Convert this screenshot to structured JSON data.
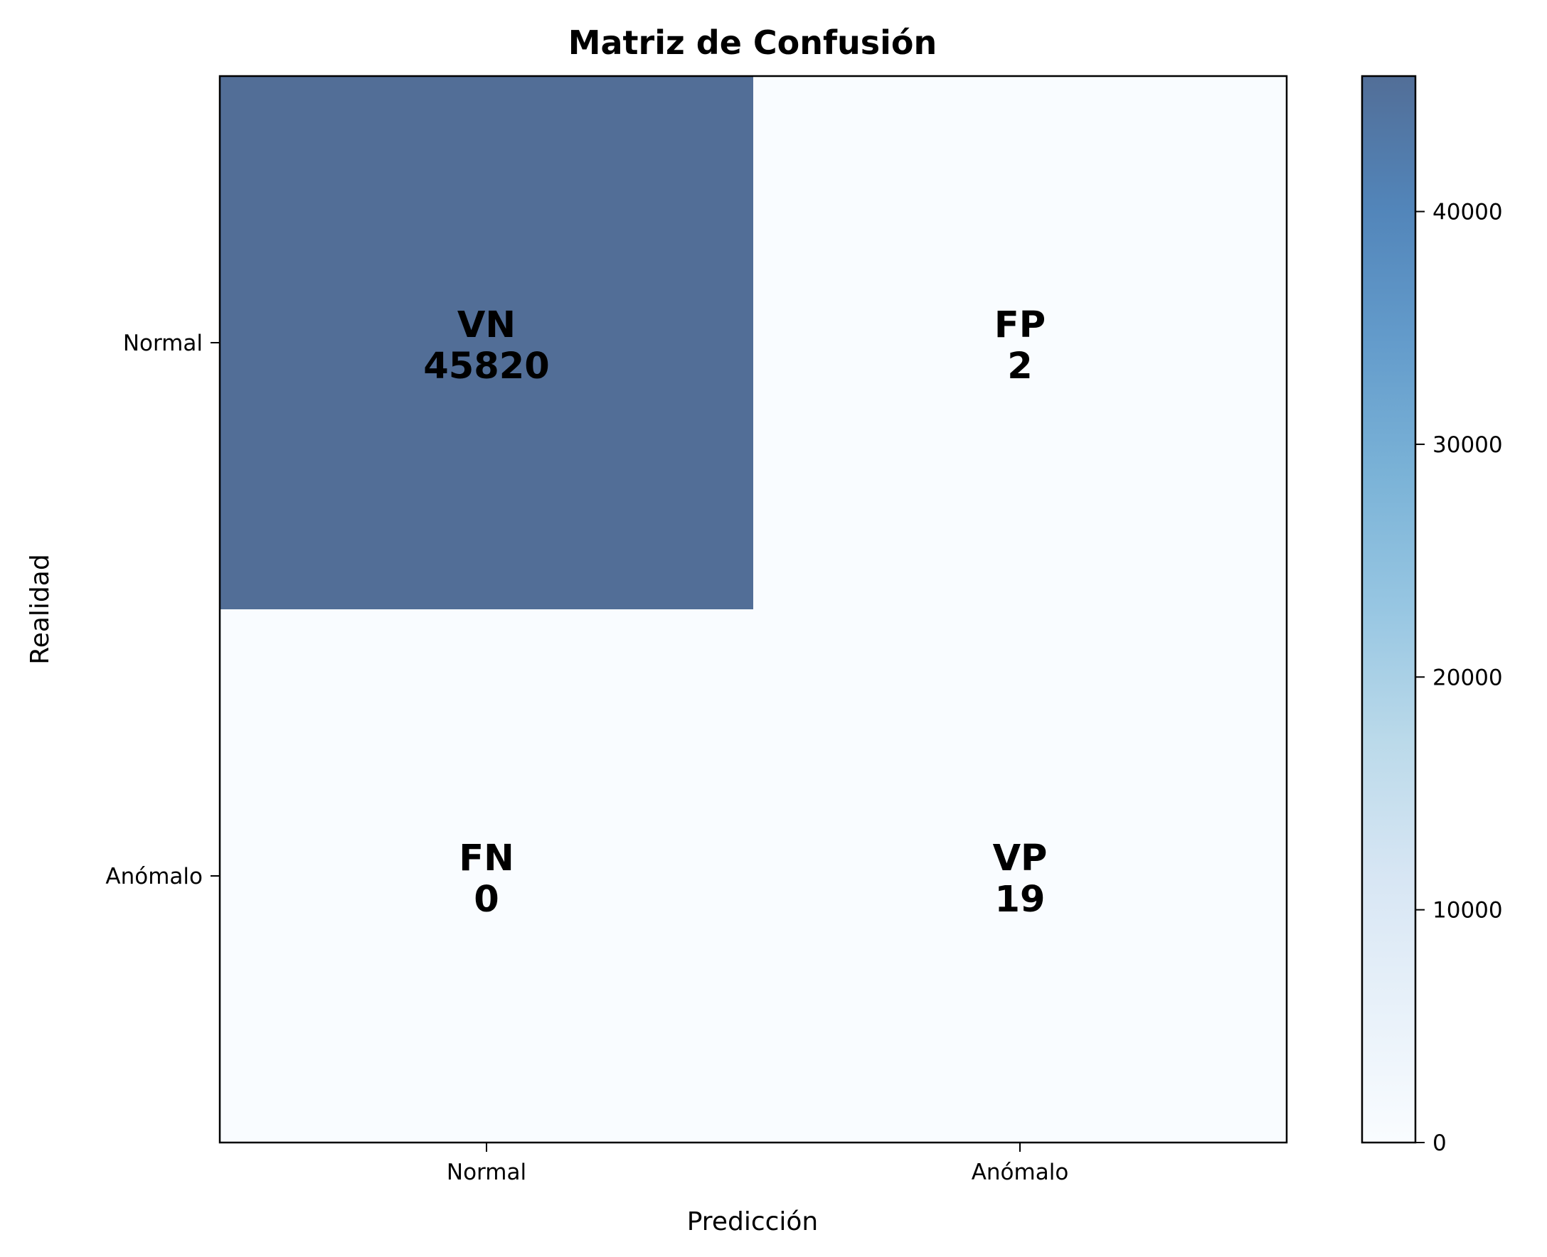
{
  "chart_data": {
    "type": "heatmap",
    "title": "Matriz de Confusión",
    "xlabel": "Predicción",
    "ylabel": "Realidad",
    "x_categories": [
      "Normal",
      "Anómalo"
    ],
    "y_categories": [
      "Normal",
      "Anómalo"
    ],
    "cells": [
      {
        "row": 0,
        "col": 0,
        "label": "VN",
        "value": 45820
      },
      {
        "row": 0,
        "col": 1,
        "label": "FP",
        "value": 2
      },
      {
        "row": 1,
        "col": 0,
        "label": "FN",
        "value": 0
      },
      {
        "row": 1,
        "col": 1,
        "label": "VP",
        "value": 19
      }
    ],
    "colorbar": {
      "range": [
        0,
        45820
      ],
      "ticks": [
        0,
        10000,
        20000,
        30000,
        40000
      ],
      "colors": [
        "#f7fbff",
        "#deebf7",
        "#c6dbef",
        "#9ecae1",
        "#6baed6",
        "#4292c6",
        "#2171b5",
        "#08519c",
        "#08306b"
      ],
      "alpha": 0.7
    },
    "grid": false
  }
}
